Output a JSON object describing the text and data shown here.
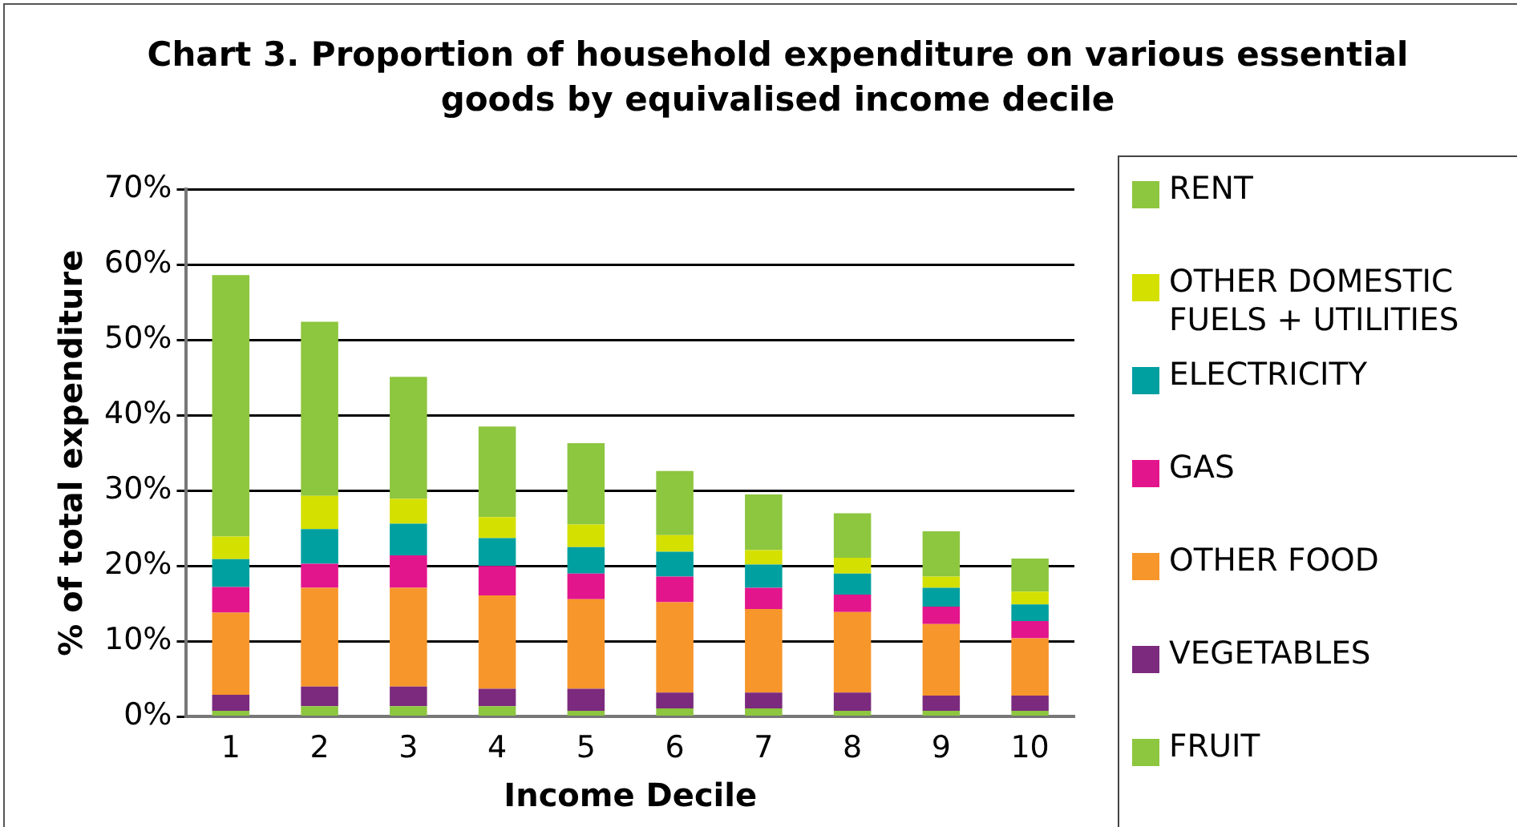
{
  "chart_data": {
    "type": "bar",
    "stacked": true,
    "title": "Chart 3. Proportion of household expenditure on various essential goods by equivalised income decile",
    "xlabel": "Income Decile",
    "ylabel": "% of total expenditure",
    "categories": [
      "1",
      "2",
      "3",
      "4",
      "5",
      "6",
      "7",
      "8",
      "9",
      "10"
    ],
    "ylim": [
      0,
      70
    ],
    "yticks": [
      {
        "value": 0,
        "label": "0%"
      },
      {
        "value": 10,
        "label": "10%"
      },
      {
        "value": 20,
        "label": "20%"
      },
      {
        "value": 30,
        "label": "30%"
      },
      {
        "value": 40,
        "label": "40%"
      },
      {
        "value": 50,
        "label": "50%"
      },
      {
        "value": 60,
        "label": "60%"
      },
      {
        "value": 70,
        "label": "70%"
      }
    ],
    "grid": "y",
    "legend": "right",
    "series": [
      {
        "name": "FRUIT",
        "color": "#8dc63f",
        "values": [
          0.8,
          1.4,
          1.4,
          1.4,
          0.8,
          1.1,
          1.1,
          0.8,
          0.8,
          0.8
        ]
      },
      {
        "name": "VEGETABLES",
        "color": "#7b2a7e",
        "values": [
          2.1,
          2.6,
          2.6,
          2.3,
          2.9,
          2.1,
          2.1,
          2.4,
          2.0,
          2.0
        ]
      },
      {
        "name": "OTHER FOOD",
        "color": "#f7962b",
        "values": [
          10.9,
          13.1,
          13.1,
          12.4,
          11.9,
          12.0,
          11.1,
          10.7,
          9.5,
          7.6
        ]
      },
      {
        "name": "GAS",
        "color": "#e3158c",
        "values": [
          3.4,
          3.2,
          4.3,
          3.9,
          3.4,
          3.4,
          2.8,
          2.3,
          2.3,
          2.3
        ]
      },
      {
        "name": "ELECTRICITY",
        "color": "#00a0a0",
        "values": [
          3.7,
          4.6,
          4.2,
          3.7,
          3.5,
          3.3,
          3.1,
          2.8,
          2.5,
          2.2
        ]
      },
      {
        "name": "OTHER DOMESTIC FUELS + UTILITIES",
        "color": "#d4e000",
        "values": [
          3.0,
          4.4,
          3.3,
          2.8,
          3.0,
          2.2,
          1.9,
          2.1,
          1.5,
          1.7
        ]
      },
      {
        "name": "RENT",
        "color": "#8dc63f",
        "values": [
          34.7,
          23.1,
          16.2,
          12.0,
          10.8,
          8.5,
          7.4,
          5.9,
          6.0,
          4.4
        ]
      }
    ]
  }
}
